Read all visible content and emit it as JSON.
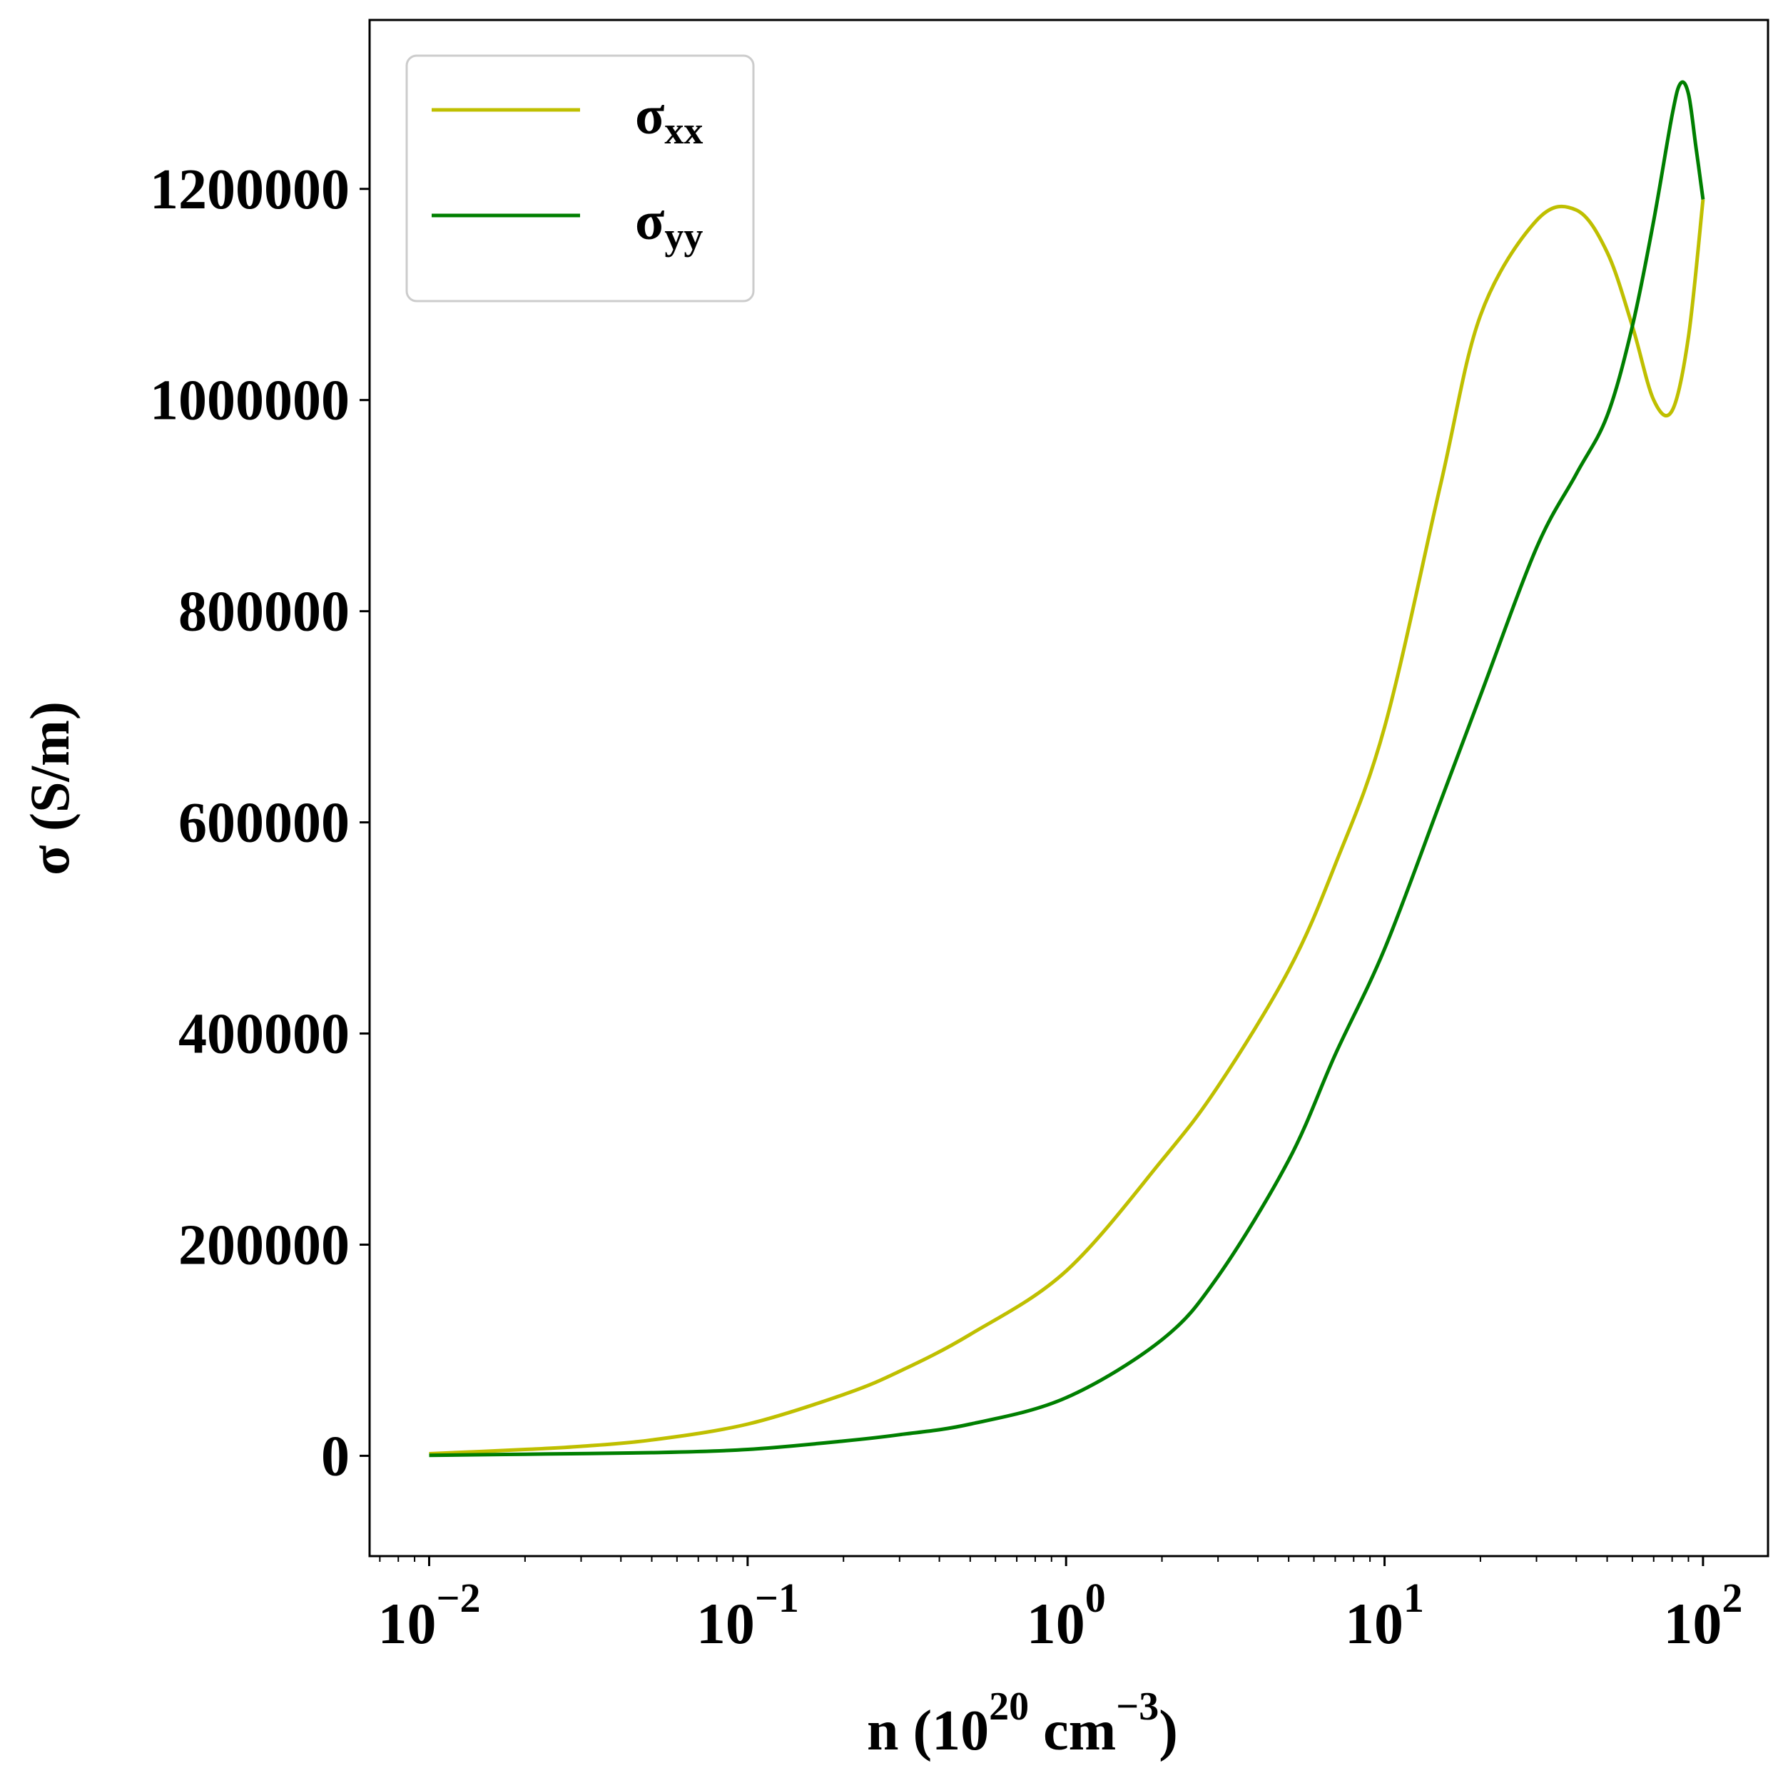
{
  "chart_data": {
    "type": "line",
    "xscale": "log",
    "xlim": [
      0.0065,
      160
    ],
    "ylim": [
      -95000,
      1360000
    ],
    "xlabel": "n (10^20 cm^-3)",
    "xlabel_parts": {
      "base": "n (10",
      "exp1": "20",
      "mid": " cm",
      "exp2": "−3",
      "end": ")"
    },
    "ylabel": "σ (S/m)",
    "grid": false,
    "legend_position": "upper-left",
    "x_ticks": [
      {
        "value": 0.01,
        "base": "10",
        "exp": "−2"
      },
      {
        "value": 0.1,
        "base": "10",
        "exp": "−1"
      },
      {
        "value": 1,
        "base": "10",
        "exp": "0"
      },
      {
        "value": 10,
        "base": "10",
        "exp": "1"
      },
      {
        "value": 100,
        "base": "10",
        "exp": "2"
      }
    ],
    "y_ticks": [
      {
        "value": 0,
        "label": "0"
      },
      {
        "value": 200000,
        "label": "200000"
      },
      {
        "value": 400000,
        "label": "400000"
      },
      {
        "value": 600000,
        "label": "600000"
      },
      {
        "value": 800000,
        "label": "800000"
      },
      {
        "value": 1000000,
        "label": "1000000"
      },
      {
        "value": 1200000,
        "label": "1200000"
      }
    ],
    "series": [
      {
        "name": "σxx",
        "legend_base": "σ",
        "legend_sub": "xx",
        "color": "#bfbf00",
        "x": [
          0.01,
          0.02,
          0.03,
          0.05,
          0.1,
          0.2,
          0.3,
          0.5,
          1,
          2,
          3,
          5,
          7,
          10,
          15,
          20,
          30,
          40,
          50,
          60,
          70,
          80,
          90,
          100
        ],
        "y": [
          2000,
          6000,
          9000,
          15000,
          30000,
          58000,
          80000,
          115000,
          175000,
          280000,
          350000,
          460000,
          560000,
          690000,
          920000,
          1080000,
          1170000,
          1180000,
          1140000,
          1070000,
          1000000,
          990000,
          1060000,
          1190000
        ]
      },
      {
        "name": "σyy",
        "legend_base": "σ",
        "legend_sub": "yy",
        "color": "#007f00",
        "x": [
          0.01,
          0.02,
          0.05,
          0.1,
          0.2,
          0.3,
          0.5,
          1,
          2,
          3,
          5,
          7,
          10,
          15,
          20,
          30,
          40,
          50,
          60,
          70,
          80,
          85,
          90,
          95,
          100
        ],
        "y": [
          500,
          1500,
          3000,
          6000,
          14000,
          20000,
          30000,
          55000,
          110000,
          170000,
          280000,
          380000,
          480000,
          620000,
          720000,
          860000,
          930000,
          985000,
          1070000,
          1170000,
          1270000,
          1300000,
          1290000,
          1240000,
          1190000
        ]
      }
    ]
  }
}
